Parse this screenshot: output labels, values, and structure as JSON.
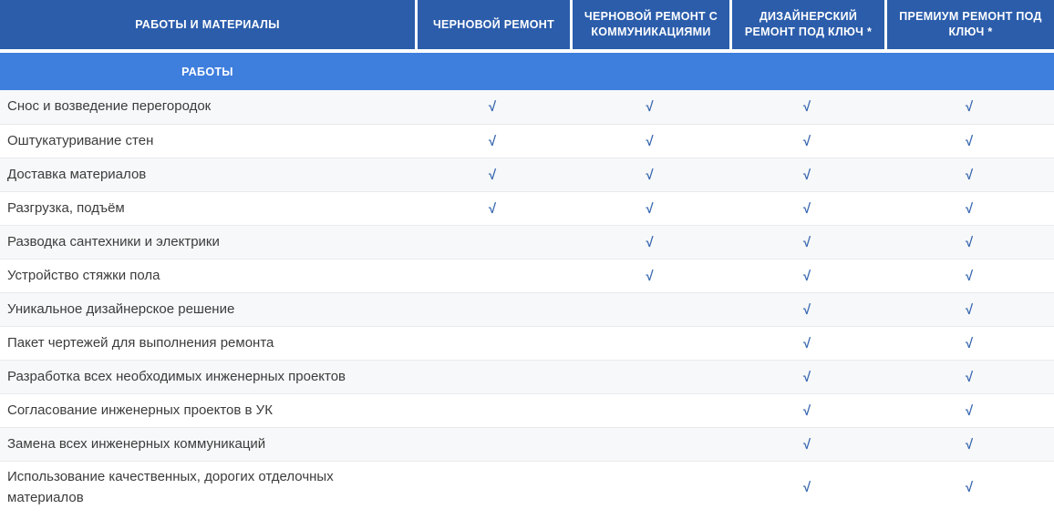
{
  "table": {
    "colors": {
      "header_bg": "#2b5dab",
      "section_bg": "#3e7edd",
      "check_color": "#3767b1",
      "alt_row_bg": "#f7f8f9"
    },
    "check_glyph": "√",
    "header": {
      "col0": "РАБОТЫ И МАТЕРИАЛЫ",
      "plans": [
        "ЧЕРНОВОЙ РЕМОНТ",
        "ЧЕРНОВОЙ РЕМОНТ С КОММУНИКАЦИЯМИ",
        "ДИЗАЙНЕРСКИЙ РЕМОНТ ПОД КЛЮЧ *",
        "ПРЕМИУМ РЕМОНТ ПОД КЛЮЧ *"
      ]
    },
    "section": {
      "label": "РАБОТЫ"
    },
    "rows": [
      {
        "label": "Снос и возведение перегородок",
        "checks": [
          "√",
          "√",
          "√",
          "√"
        ]
      },
      {
        "label": "Оштукатуривание стен",
        "checks": [
          "√",
          "√",
          "√",
          "√"
        ]
      },
      {
        "label": "Доставка материалов",
        "checks": [
          "√",
          "√",
          "√",
          "√"
        ]
      },
      {
        "label": "Разгрузка, подъём",
        "checks": [
          "√",
          "√",
          "√",
          "√"
        ]
      },
      {
        "label": "Разводка сантехники и электрики",
        "checks": [
          "",
          "√",
          "√",
          "√"
        ]
      },
      {
        "label": "Устройство стяжки пола",
        "checks": [
          "",
          "√",
          "√",
          "√"
        ]
      },
      {
        "label": "Уникальное дизайнерское решение",
        "checks": [
          "",
          "",
          "√",
          "√"
        ]
      },
      {
        "label": "Пакет чертежей для выполнения ремонта",
        "checks": [
          "",
          "",
          "√",
          "√"
        ]
      },
      {
        "label": "Разработка всех необходимых инженерных проектов",
        "checks": [
          "",
          "",
          "√",
          "√"
        ]
      },
      {
        "label": "Согласование инженерных проектов в УК",
        "checks": [
          "",
          "",
          "√",
          "√"
        ]
      },
      {
        "label": "Замена всех инженерных коммуникаций",
        "checks": [
          "",
          "",
          "√",
          "√"
        ]
      },
      {
        "label": "Использование качественных, дорогих отделочных материалов",
        "checks": [
          "",
          "",
          "√",
          "√"
        ]
      }
    ]
  }
}
